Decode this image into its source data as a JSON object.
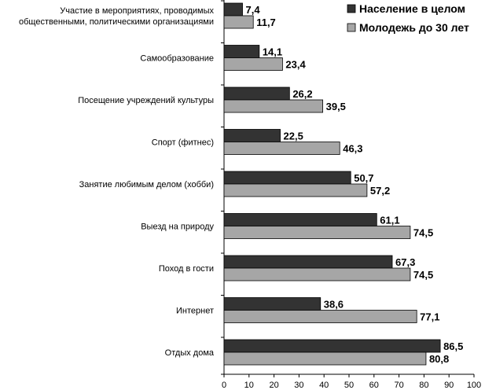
{
  "chart_data": {
    "type": "bar",
    "orientation": "horizontal",
    "title": "",
    "xlabel": "",
    "ylabel": "",
    "xlim": [
      0,
      100
    ],
    "xticks": [
      0,
      10,
      20,
      30,
      40,
      50,
      60,
      70,
      80,
      90,
      100
    ],
    "grid": false,
    "legend_position": "top-right",
    "categories": [
      [
        "Участие в мероприятиях, проводимых",
        "общественными, политическими организациями"
      ],
      [
        "Самообразование"
      ],
      [
        "Посещение учреждений культуры"
      ],
      [
        "Спорт (фитнес)"
      ],
      [
        "Занятие любимым делом (хобби)"
      ],
      [
        "Выезд на природу"
      ],
      [
        "Поход в гости"
      ],
      [
        "Интернет"
      ],
      [
        "Отдых дома"
      ]
    ],
    "series": [
      {
        "name": "Население в целом",
        "color": "#333333",
        "values": [
          7.4,
          14.1,
          26.2,
          22.5,
          50.7,
          61.1,
          67.3,
          38.6,
          86.5
        ],
        "labels": [
          "7,4",
          "14,1",
          "26,2",
          "22,5",
          "50,7",
          "61,1",
          "67,3",
          "38,6",
          "86,5"
        ]
      },
      {
        "name": "Молодежь до 30 лет",
        "color": "#a6a6a6",
        "values": [
          11.7,
          23.4,
          39.5,
          46.3,
          57.2,
          74.5,
          74.5,
          77.1,
          80.8
        ],
        "labels": [
          "11,7",
          "23,4",
          "39,5",
          "46,3",
          "57,2",
          "74,5",
          "74,5",
          "77,1",
          "80,8"
        ]
      }
    ]
  }
}
